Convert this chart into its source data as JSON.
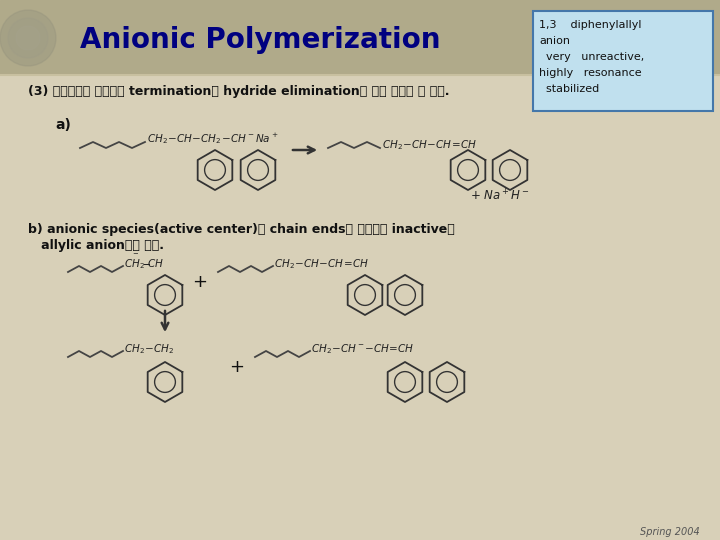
{
  "title": "Anionic Polymerization",
  "bg_header": "#b0aa8a",
  "bg_content": "#d8d0b8",
  "title_color": "#000080",
  "title_fontsize": 20,
  "header_text": "(3) 불순물들이 없더라도 termination은 hydride elimination에 의해 일어날 수 있다.",
  "label_a": "a)",
  "label_b_line1": "b) anionic species(active center)가 chain ends와 반응하여 inactive한",
  "label_b_line2": "   allylic anion들을 생성.",
  "box_text_lines": [
    "1,3    diphenylallyl",
    "anion",
    "  very   unreactive,",
    "highly   resonance",
    "  stabilized"
  ],
  "box_bg": "#c0e0ee",
  "box_border": "#4477aa",
  "footer_text": "Spring 2004",
  "text_color": "#111111",
  "chem_color": "#222222",
  "chain_color": "#444444"
}
